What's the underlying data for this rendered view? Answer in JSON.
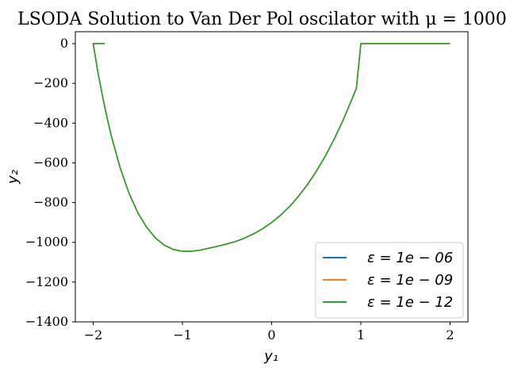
{
  "chart_data": {
    "type": "line",
    "title": "LSODA Solution to Van Der Pol oscilator with μ = 1000.0",
    "xlabel": "y₁",
    "ylabel": "y₂",
    "xlim": [
      -2.2,
      2.2
    ],
    "ylim": [
      -1400,
      60
    ],
    "xticks": [
      -2,
      -1,
      0,
      1,
      2
    ],
    "xtick_labels": [
      "−2",
      "−1",
      "0",
      "1",
      "2"
    ],
    "yticks": [
      0,
      -200,
      -400,
      -600,
      -800,
      -1000,
      -1200,
      -1400
    ],
    "ytick_labels": [
      "0",
      "−200",
      "−400",
      "−600",
      "−800",
      "−1000",
      "−1200",
      "−1400"
    ],
    "grid": false,
    "legend_position": "lower-right",
    "series": [
      {
        "name": "ε = 1e − 06",
        "color": "#1f77b4",
        "x": [
          -1.87,
          -2.0,
          -1.95,
          -1.9,
          -1.85,
          -1.8,
          -1.7,
          -1.6,
          -1.5,
          -1.4,
          -1.3,
          -1.2,
          -1.1,
          -1.0,
          -0.9,
          -0.8,
          -0.7,
          -0.6,
          -0.5,
          -0.4,
          -0.3,
          -0.2,
          -0.1,
          0.0,
          0.1,
          0.2,
          0.3,
          0.4,
          0.5,
          0.6,
          0.7,
          0.8,
          0.9,
          0.95,
          1.0,
          1.5,
          2.0
        ],
        "y": [
          0,
          0,
          -136,
          -255,
          -362,
          -459,
          -622,
          -751,
          -851,
          -925,
          -979,
          -1015,
          -1036,
          -1045,
          -1045,
          -1039,
          -1029,
          -1019,
          -1008,
          -995,
          -978,
          -957,
          -931,
          -900,
          -863,
          -820,
          -769,
          -710,
          -643,
          -567,
          -481,
          -386,
          -280,
          -223,
          0,
          0,
          0
        ]
      },
      {
        "name": "ε = 1e − 09",
        "color": "#ff7f0e",
        "x": [
          -1.87,
          -2.0,
          -1.95,
          -1.9,
          -1.85,
          -1.8,
          -1.7,
          -1.6,
          -1.5,
          -1.4,
          -1.3,
          -1.2,
          -1.1,
          -1.0,
          -0.9,
          -0.8,
          -0.7,
          -0.6,
          -0.5,
          -0.4,
          -0.3,
          -0.2,
          -0.1,
          0.0,
          0.1,
          0.2,
          0.3,
          0.4,
          0.5,
          0.6,
          0.7,
          0.8,
          0.9,
          0.95,
          1.0,
          1.5,
          2.0
        ],
        "y": [
          0,
          0,
          -136,
          -255,
          -362,
          -459,
          -622,
          -751,
          -851,
          -925,
          -979,
          -1015,
          -1036,
          -1045,
          -1045,
          -1039,
          -1029,
          -1019,
          -1008,
          -995,
          -978,
          -957,
          -931,
          -900,
          -863,
          -820,
          -769,
          -710,
          -643,
          -567,
          -481,
          -386,
          -280,
          -223,
          0,
          0,
          0
        ]
      },
      {
        "name": "ε = 1e − 12",
        "color": "#2ca02c",
        "x": [
          -1.87,
          -2.0,
          -1.95,
          -1.9,
          -1.85,
          -1.8,
          -1.7,
          -1.6,
          -1.5,
          -1.4,
          -1.3,
          -1.2,
          -1.1,
          -1.0,
          -0.9,
          -0.8,
          -0.7,
          -0.6,
          -0.5,
          -0.4,
          -0.3,
          -0.2,
          -0.1,
          0.0,
          0.1,
          0.2,
          0.3,
          0.4,
          0.5,
          0.6,
          0.7,
          0.8,
          0.9,
          0.95,
          1.0,
          1.5,
          2.0
        ],
        "y": [
          0,
          0,
          -136,
          -255,
          -362,
          -459,
          -622,
          -751,
          -851,
          -925,
          -979,
          -1015,
          -1036,
          -1045,
          -1045,
          -1039,
          -1029,
          -1019,
          -1008,
          -995,
          -978,
          -957,
          -931,
          -900,
          -863,
          -820,
          -769,
          -710,
          -643,
          -567,
          -481,
          -386,
          -280,
          -223,
          0,
          0,
          0
        ]
      }
    ]
  }
}
